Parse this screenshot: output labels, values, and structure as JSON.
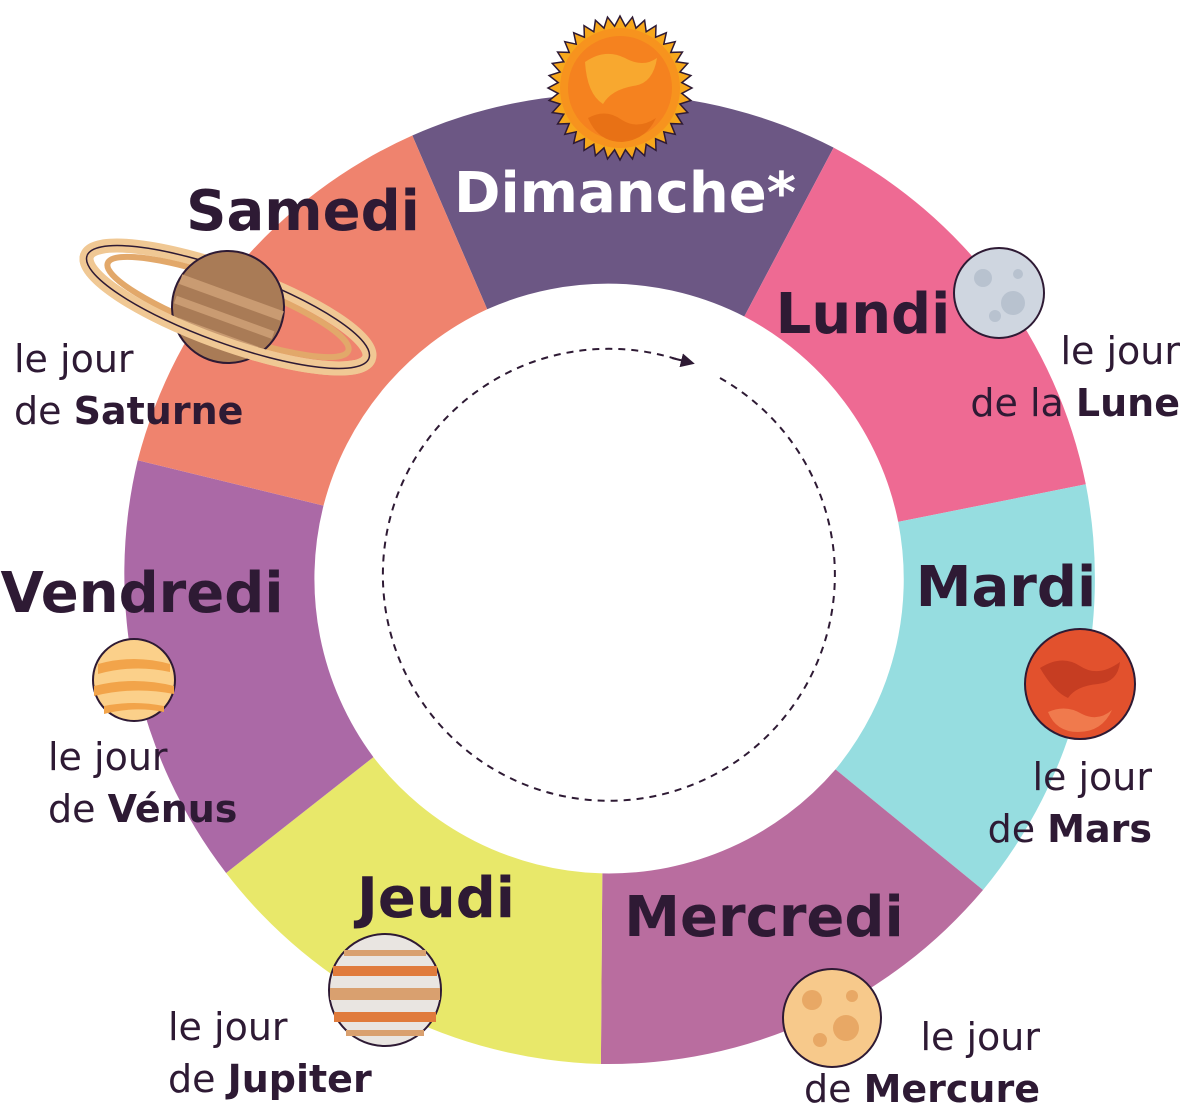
{
  "colors": {
    "dark_text": "#2e1a34",
    "dimanche": "#6c5784",
    "lundi": "#ee6a93",
    "mardi": "#96dde0",
    "mercredi": "#b96d9f",
    "jeudi": "#e8e86a",
    "vendredi": "#ab69a6",
    "samedi": "#ef836e"
  },
  "days": [
    {
      "key": "dimanche",
      "name": "Dimanche*",
      "body_icon": "sun-icon"
    },
    {
      "key": "lundi",
      "name": "Lundi",
      "line1": "le jour",
      "line2_prefix": "de la",
      "planet": "Lune",
      "body_icon": "moon-icon"
    },
    {
      "key": "mardi",
      "name": "Mardi",
      "line1": "le jour",
      "line2_prefix": "de",
      "planet": "Mars",
      "body_icon": "mars-icon"
    },
    {
      "key": "mercredi",
      "name": "Mercredi",
      "line1": "le jour",
      "line2_prefix": "de",
      "planet": "Mercure",
      "body_icon": "mercury-icon"
    },
    {
      "key": "jeudi",
      "name": "Jeudi",
      "line1": "le jour",
      "line2_prefix": "de",
      "planet": "Jupiter",
      "body_icon": "jupiter-icon"
    },
    {
      "key": "vendredi",
      "name": "Vendredi",
      "line1": "le jour",
      "line2_prefix": "de",
      "planet": "Vénus",
      "body_icon": "venus-icon"
    },
    {
      "key": "samedi",
      "name": "Samedi",
      "line1": "le jour",
      "line2_prefix": "de",
      "planet": "Saturne",
      "body_icon": "saturn-icon"
    }
  ]
}
